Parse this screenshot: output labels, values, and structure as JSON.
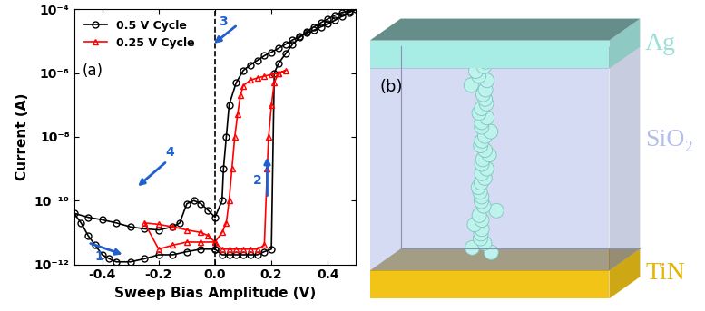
{
  "chart_data": {
    "type": "line",
    "panel_label": "(a)",
    "x_label": "Sweep Bias Amplitude (V)",
    "y_label": "Current (A)",
    "log": "y",
    "xlim": [
      -0.5,
      0.5
    ],
    "xticks": [
      -0.4,
      -0.2,
      0.0,
      0.2,
      0.4
    ],
    "ylim": [
      1e-12,
      0.0001
    ],
    "yticks": [
      {
        "value": 1e-12,
        "label": "10⁻¹²"
      },
      {
        "value": 1e-10,
        "label": "10⁻¹⁰"
      },
      {
        "value": 1e-08,
        "label": "10⁻⁸"
      },
      {
        "value": 1e-06,
        "label": "10⁻⁶"
      },
      {
        "value": 0.0001,
        "label": "10⁻⁴"
      }
    ],
    "legend": "upper left",
    "vlines": [
      {
        "x": 0,
        "line_style": "dashed"
      }
    ],
    "annotations": [
      "1",
      "2",
      "3",
      "4"
    ],
    "series": [
      {
        "name": "0.5 V Cycle",
        "color": "#000000",
        "marker": "circle",
        "line_style": "solid",
        "x": [
          0.0,
          0.025,
          0.05,
          0.075,
          0.1,
          0.125,
          0.15,
          0.175,
          0.2,
          0.21,
          0.225,
          0.25,
          0.275,
          0.3,
          0.325,
          0.35,
          0.375,
          0.4,
          0.425,
          0.45,
          0.475,
          0.5,
          0.475,
          0.45,
          0.425,
          0.4,
          0.375,
          0.35,
          0.325,
          0.3,
          0.275,
          0.25,
          0.225,
          0.2,
          0.175,
          0.15,
          0.125,
          0.1,
          0.075,
          0.05,
          0.04,
          0.03,
          0.025,
          0.0,
          -0.025,
          -0.05,
          -0.075,
          -0.1,
          -0.125,
          -0.15,
          -0.2,
          -0.25,
          -0.3,
          -0.35,
          -0.4,
          -0.45,
          -0.5,
          -0.475,
          -0.45,
          -0.425,
          -0.4,
          -0.375,
          -0.35,
          -0.3,
          -0.25,
          -0.2,
          -0.15,
          -0.1,
          -0.05,
          0.0
        ],
        "values": [
          3e-12,
          2e-12,
          2e-12,
          2e-12,
          2e-12,
          2e-12,
          2e-12,
          2.5e-12,
          3e-12,
          1e-06,
          2e-06,
          4e-06,
          8e-06,
          1.3e-05,
          2e-05,
          2.8e-05,
          3.8e-05,
          5e-05,
          6.5e-05,
          8e-05,
          9e-05,
          0.0001,
          8e-05,
          6e-05,
          4.5e-05,
          3.5e-05,
          2.8e-05,
          2.2e-05,
          1.8e-05,
          1.4e-05,
          1.1e-05,
          8e-06,
          6e-06,
          4.5e-06,
          3.5e-06,
          2.5e-06,
          1.8e-06,
          1.2e-06,
          5e-07,
          1e-07,
          1e-08,
          1e-09,
          1e-10,
          3e-11,
          5e-11,
          8e-11,
          1e-10,
          8e-11,
          2e-11,
          1.5e-11,
          1.2e-11,
          1.3e-11,
          1.5e-11,
          2e-11,
          2.5e-11,
          3e-11,
          4e-11,
          2e-11,
          8e-12,
          4e-12,
          2e-12,
          1.5e-12,
          1.2e-12,
          1.2e-12,
          1.5e-12,
          2e-12,
          2e-12,
          2.5e-12,
          3e-12,
          3e-12
        ]
      },
      {
        "name": "0.25 V Cycle",
        "color": "#ff0000",
        "marker": "triangle",
        "line_style": "solid",
        "x": [
          0.0,
          0.025,
          0.05,
          0.075,
          0.1,
          0.125,
          0.15,
          0.175,
          0.185,
          0.19,
          0.2,
          0.21,
          0.225,
          0.25,
          0.225,
          0.2,
          0.175,
          0.15,
          0.125,
          0.1,
          0.09,
          0.08,
          0.07,
          0.06,
          0.05,
          0.04,
          0.025,
          0.0,
          -0.025,
          -0.05,
          -0.1,
          -0.15,
          -0.2,
          -0.25,
          -0.2,
          -0.15,
          -0.1,
          -0.05,
          0.0
        ],
        "values": [
          5e-12,
          3e-12,
          3e-12,
          3e-12,
          3e-12,
          3e-12,
          3e-12,
          4e-12,
          1e-09,
          1e-08,
          1e-07,
          5e-07,
          1e-06,
          1.2e-06,
          1e-06,
          9e-07,
          8e-07,
          7e-07,
          6e-07,
          4e-07,
          2e-07,
          5e-08,
          1e-08,
          1e-09,
          1e-10,
          2e-11,
          1e-11,
          5e-12,
          8e-12,
          1e-11,
          1.2e-11,
          1.5e-11,
          1.8e-11,
          2e-11,
          3e-12,
          4e-12,
          5e-12,
          5e-12,
          5e-12
        ]
      }
    ]
  },
  "diagram": {
    "panel_label": "(b)",
    "layers": [
      {
        "name": "Ag",
        "color": "#a8ece6"
      },
      {
        "name": "SiO₂",
        "color": "#b4bfe8"
      },
      {
        "name": "TiN",
        "color": "#f2c418"
      }
    ]
  }
}
